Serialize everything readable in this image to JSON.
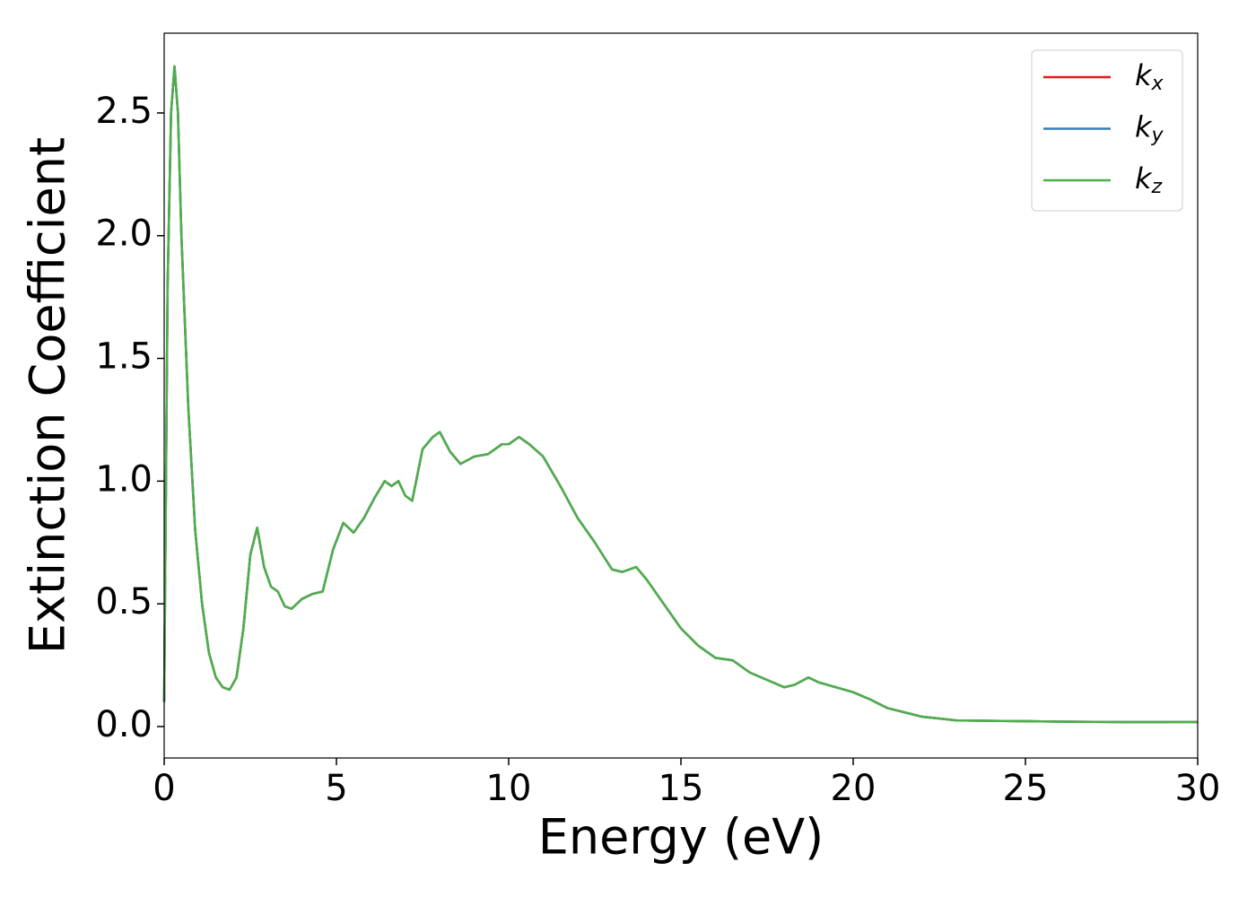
{
  "chart_data": {
    "type": "line",
    "xlabel": "Energy (eV)",
    "ylabel": "Extinction Coefficient",
    "xlim": [
      0,
      30
    ],
    "ylim": [
      -0.128,
      2.825
    ],
    "xticks": [
      0,
      5,
      10,
      15,
      20,
      25,
      30
    ],
    "yticks": [
      {
        "value": 0,
        "label": "0.0"
      },
      0.5,
      {
        "value": 1,
        "label": "1.0"
      },
      1.5,
      {
        "value": 2,
        "label": "2.0"
      },
      2.5
    ],
    "legend": "upper right",
    "x": [
      0,
      0.1,
      0.2,
      0.3,
      0.4,
      0.5,
      0.7,
      0.9,
      1.1,
      1.3,
      1.5,
      1.7,
      1.9,
      2.1,
      2.3,
      2.5,
      2.7,
      2.9,
      3.1,
      3.3,
      3.5,
      3.7,
      4.0,
      4.3,
      4.6,
      4.9,
      5.2,
      5.5,
      5.8,
      6.1,
      6.4,
      6.6,
      6.8,
      7.0,
      7.2,
      7.5,
      7.8,
      8.0,
      8.3,
      8.6,
      9.0,
      9.4,
      9.8,
      10.0,
      10.3,
      10.6,
      11.0,
      11.5,
      12.0,
      12.5,
      13.0,
      13.3,
      13.7,
      14.0,
      14.5,
      15.0,
      15.5,
      16.0,
      16.5,
      17.0,
      17.5,
      18.0,
      18.3,
      18.7,
      19.0,
      19.5,
      20.0,
      20.5,
      21.0,
      22.0,
      23.0,
      24.0,
      25.0,
      26.0,
      27.0,
      28.0,
      29.0,
      29.5,
      30.0
    ],
    "series": [
      {
        "name": "kx",
        "color": "#e41a1c",
        "values": [
          0.1,
          1.8,
          2.5,
          2.69,
          2.5,
          2.0,
          1.3,
          0.8,
          0.5,
          0.3,
          0.2,
          0.16,
          0.15,
          0.2,
          0.4,
          0.7,
          0.81,
          0.65,
          0.57,
          0.55,
          0.49,
          0.48,
          0.52,
          0.54,
          0.55,
          0.72,
          0.83,
          0.79,
          0.85,
          0.93,
          1.0,
          0.98,
          1.0,
          0.94,
          0.92,
          1.13,
          1.18,
          1.2,
          1.12,
          1.07,
          1.1,
          1.11,
          1.15,
          1.15,
          1.18,
          1.15,
          1.1,
          0.98,
          0.85,
          0.75,
          0.64,
          0.63,
          0.65,
          0.6,
          0.5,
          0.4,
          0.33,
          0.28,
          0.27,
          0.22,
          0.19,
          0.16,
          0.17,
          0.2,
          0.18,
          0.16,
          0.14,
          0.11,
          0.075,
          0.04,
          0.025,
          0.023,
          0.022,
          0.02,
          0.019,
          0.018,
          0.018,
          0.019,
          0.018
        ]
      },
      {
        "name": "ky",
        "color": "#377eb8",
        "values": [
          0.1,
          1.8,
          2.5,
          2.69,
          2.5,
          2.0,
          1.3,
          0.8,
          0.5,
          0.3,
          0.2,
          0.16,
          0.15,
          0.2,
          0.4,
          0.7,
          0.81,
          0.65,
          0.57,
          0.55,
          0.49,
          0.48,
          0.52,
          0.54,
          0.55,
          0.72,
          0.83,
          0.79,
          0.85,
          0.93,
          1.0,
          0.98,
          1.0,
          0.94,
          0.92,
          1.13,
          1.18,
          1.2,
          1.12,
          1.07,
          1.1,
          1.11,
          1.15,
          1.15,
          1.18,
          1.15,
          1.1,
          0.98,
          0.85,
          0.75,
          0.64,
          0.63,
          0.65,
          0.6,
          0.5,
          0.4,
          0.33,
          0.28,
          0.27,
          0.22,
          0.19,
          0.16,
          0.17,
          0.2,
          0.18,
          0.16,
          0.14,
          0.11,
          0.075,
          0.04,
          0.025,
          0.023,
          0.022,
          0.02,
          0.019,
          0.018,
          0.018,
          0.019,
          0.018
        ]
      },
      {
        "name": "kz",
        "color": "#4daf4a",
        "values": [
          0.1,
          1.8,
          2.5,
          2.69,
          2.5,
          2.0,
          1.3,
          0.8,
          0.5,
          0.3,
          0.2,
          0.16,
          0.15,
          0.2,
          0.4,
          0.7,
          0.81,
          0.65,
          0.57,
          0.55,
          0.49,
          0.48,
          0.52,
          0.54,
          0.55,
          0.72,
          0.83,
          0.79,
          0.85,
          0.93,
          1.0,
          0.98,
          1.0,
          0.94,
          0.92,
          1.13,
          1.18,
          1.2,
          1.12,
          1.07,
          1.1,
          1.11,
          1.15,
          1.15,
          1.18,
          1.15,
          1.1,
          0.98,
          0.85,
          0.75,
          0.64,
          0.63,
          0.65,
          0.6,
          0.5,
          0.4,
          0.33,
          0.28,
          0.27,
          0.22,
          0.19,
          0.16,
          0.17,
          0.2,
          0.18,
          0.16,
          0.14,
          0.11,
          0.075,
          0.04,
          0.025,
          0.023,
          0.022,
          0.02,
          0.019,
          0.018,
          0.018,
          0.019,
          0.018
        ]
      }
    ]
  }
}
